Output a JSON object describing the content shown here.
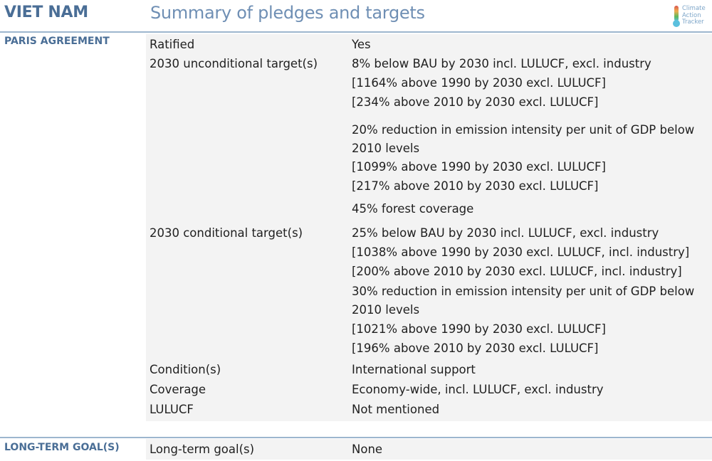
{
  "header": {
    "country": "VIET NAM",
    "subtitle": "Summary of pledges and targets",
    "logo_lines": [
      "Climate",
      "Action",
      "Tracker"
    ]
  },
  "colors": {
    "heading_blue": "#4a6e96",
    "subtitle_blue": "#6f8fb4",
    "rule": "#9db6ce",
    "row_shade": "#f3f3f3"
  },
  "sections": {
    "paris": {
      "label": "PARIS AGREEMENT",
      "rows": {
        "ratified": {
          "label": "Ratified",
          "value": "Yes"
        },
        "unconditional": {
          "label": "2030 unconditional target(s)",
          "lines": [
            "8% below BAU by 2030 incl. LULUCF, excl. industry",
            "[1164% above 1990 by 2030 excl. LULUCF]",
            "[234% above 2010 by 2030 excl. LULUCF]",
            "20% reduction in emission intensity per unit of GDP below",
            "2010 levels",
            "[1099% above 1990 by 2030 excl. LULUCF]",
            "[217% above 2010 by 2030 excl. LULUCF]",
            "45% forest coverage"
          ]
        },
        "conditional": {
          "label": "2030 conditional target(s)",
          "lines": [
            "25% below BAU by 2030 incl. LULUCF, excl. industry",
            "[1038% above 1990 by 2030 excl. LULUCF, incl. industry]",
            "[200% above 2010 by 2030 excl. LULUCF, incl. industry]",
            "30% reduction in emission intensity per unit of GDP below",
            "2010 levels",
            "[1021% above 1990 by 2030 excl. LULUCF]",
            "[196% above 2010 by 2030 excl. LULUCF]"
          ]
        },
        "condition": {
          "label": "Condition(s)",
          "value": "International support"
        },
        "coverage": {
          "label": "Coverage",
          "value": "Economy-wide, incl. LULUCF, excl. industry"
        },
        "lulucf": {
          "label": "LULUCF",
          "value": "Not mentioned"
        }
      }
    },
    "longterm": {
      "label": "LONG-TERM GOAL(S)",
      "rows": {
        "goal": {
          "label": "Long-term goal(s)",
          "value": "None"
        }
      }
    }
  }
}
